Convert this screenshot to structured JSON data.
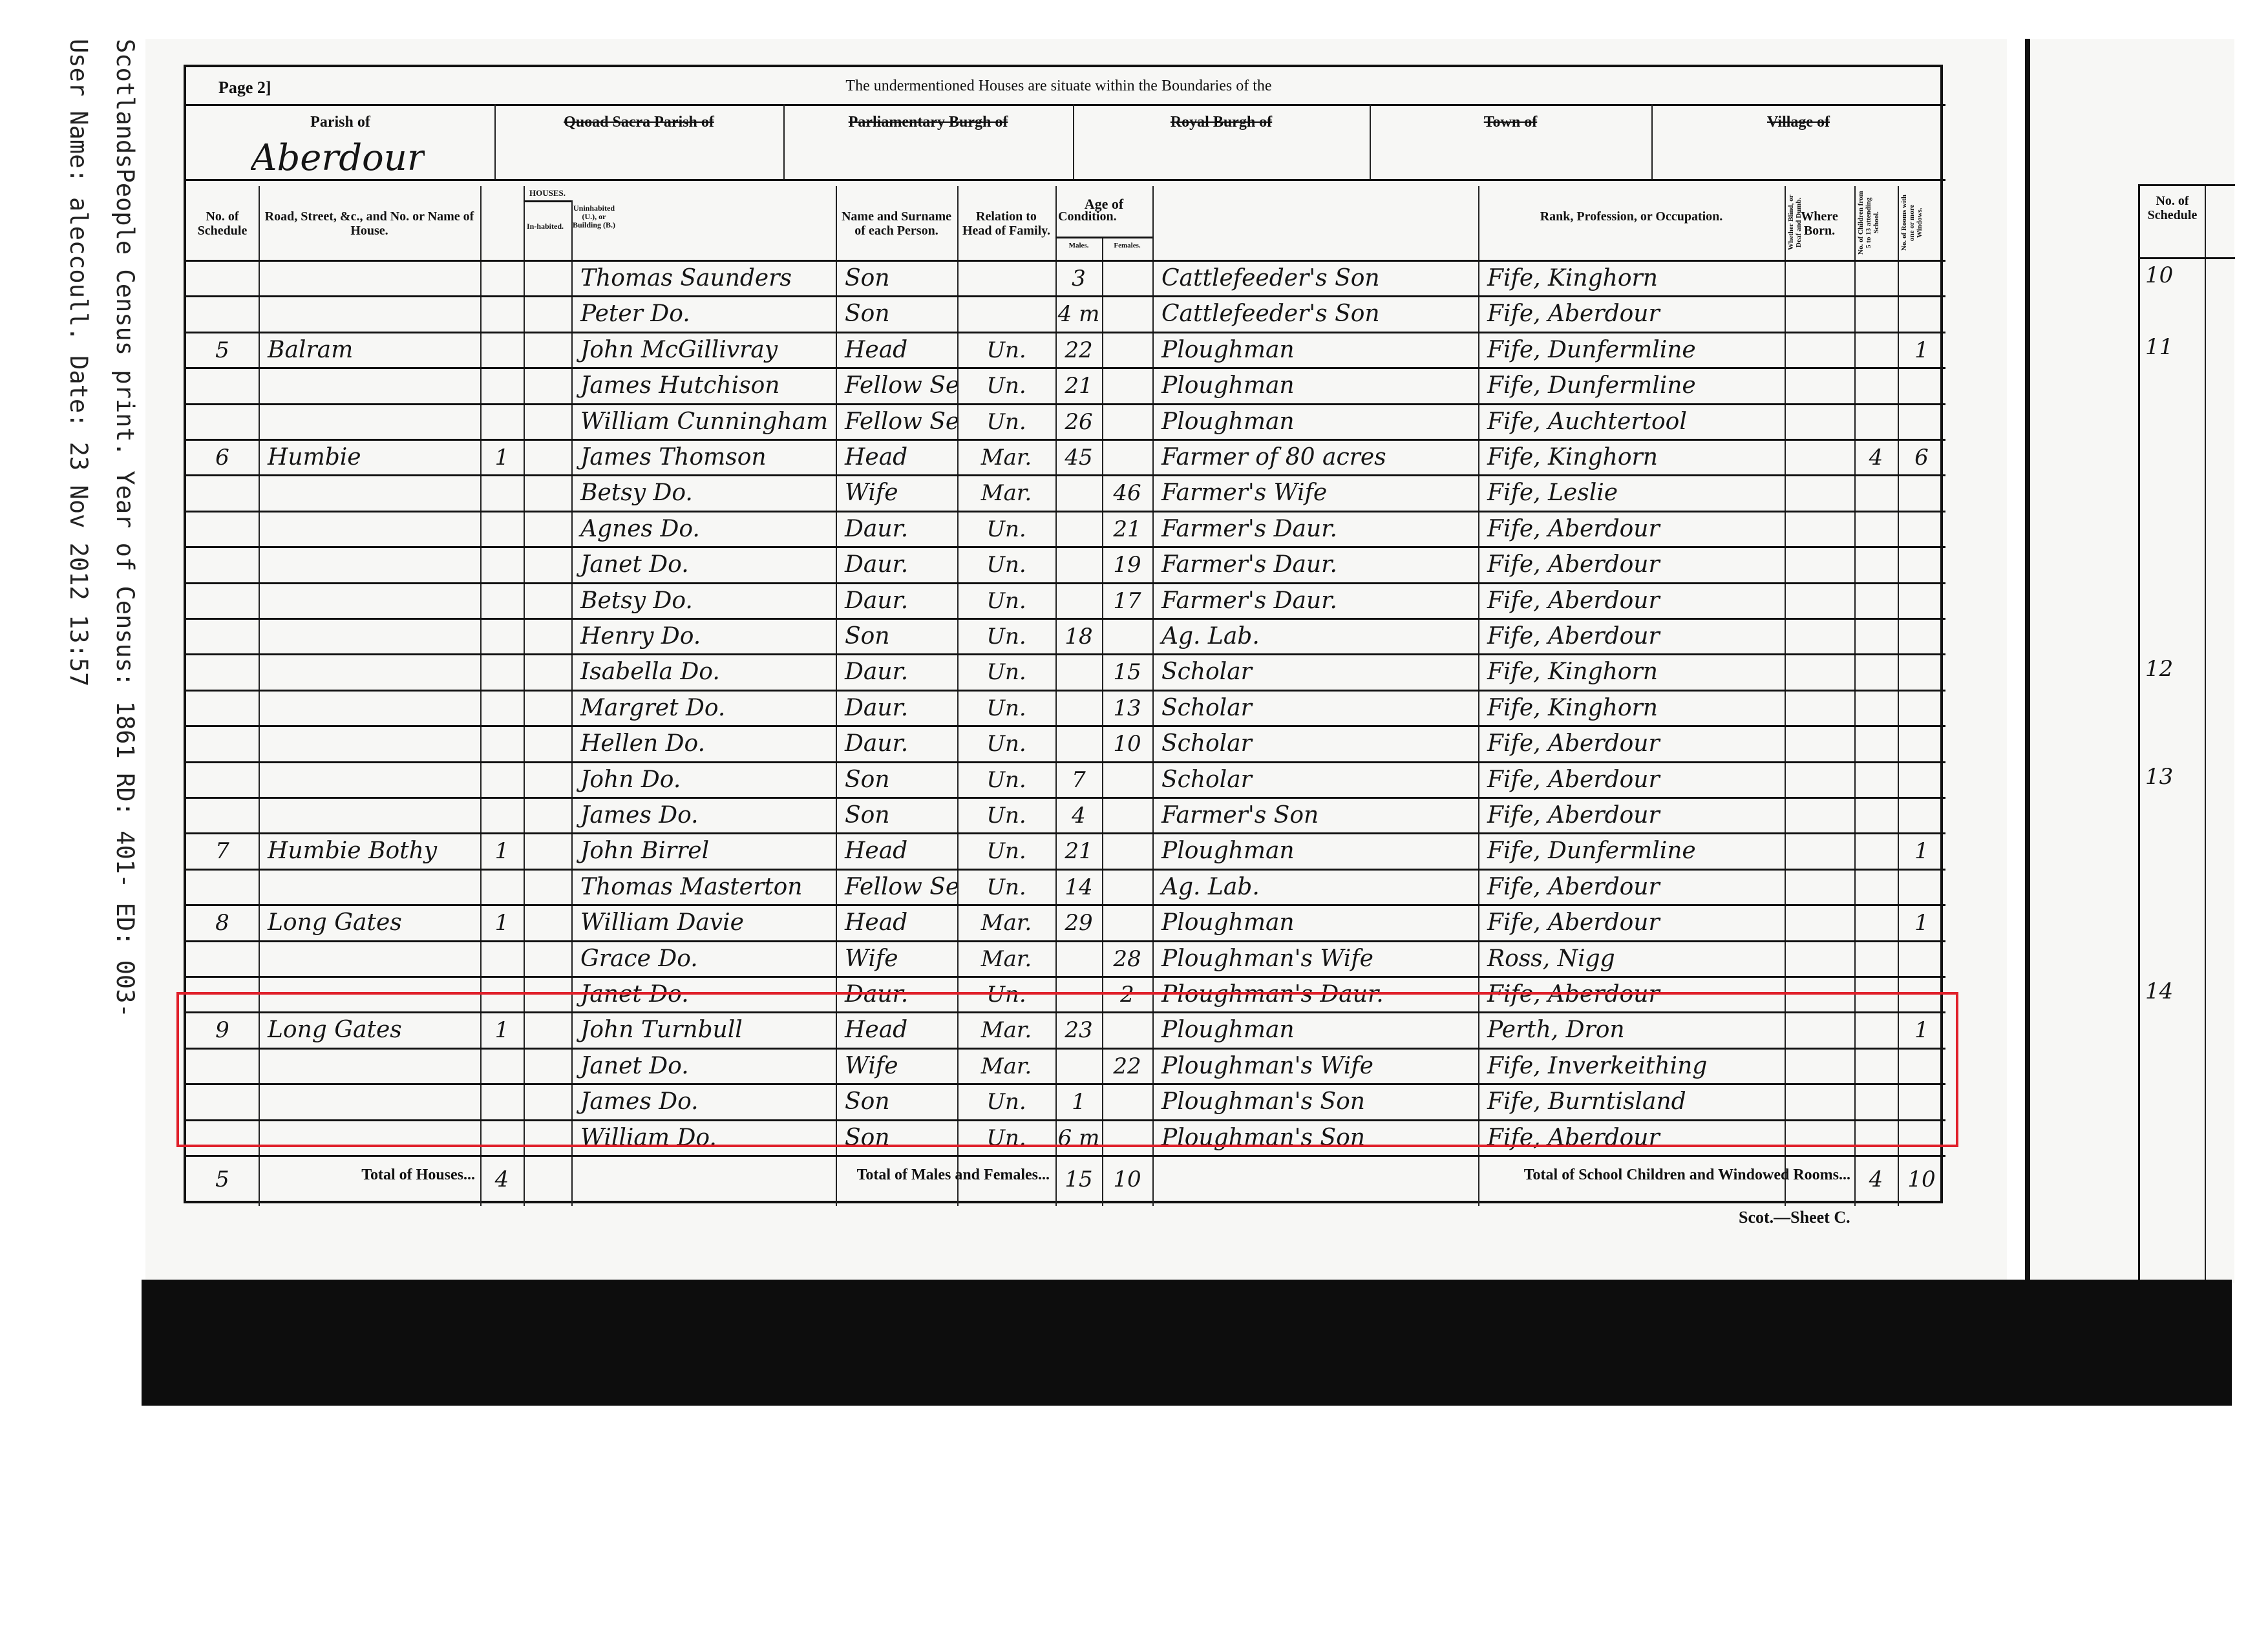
{
  "print_footer": {
    "line1": "ScotlandsPeople Census print.  Year of Census: 1861  RD: 401-  ED: 003-",
    "line2": "User Name: aleccoull.  Date: 23 Nov 2012 13:57"
  },
  "form": {
    "page_label": "Page 2]",
    "boundaries_title": "The undermentioned Houses are situate within the Boundaries of the",
    "parish_label": "Parish of",
    "parish_value": "Aberdour",
    "quoad_sacra": "Quoad Sacra Parish of",
    "parliamentary_burgh": "Parliamentary Burgh of",
    "royal_burgh": "Royal Burgh of",
    "town": "Town of",
    "village": "Village of",
    "sheet_label": "Scot.—Sheet C."
  },
  "columns": {
    "schedule": "No. of Schedule",
    "road": "Road, Street, &c., and No. or Name of House.",
    "houses": "HOUSES.",
    "inhabited": "In-habited.",
    "uninhabited": "Uninhabited (U.), or Building (B.)",
    "name": "Name and Surname of each Person.",
    "relation": "Relation to Head of Family.",
    "condition": "Condition.",
    "age": "Age of",
    "males": "Males.",
    "females": "Females.",
    "occupation": "Rank, Profession, or Occupation.",
    "born": "Where Born.",
    "blind": "Whether Blind, or Deaf and Dumb.",
    "children": "No. of Children from 5 to 13 attending School.",
    "rooms": "No. of Rooms with one or more Windows."
  },
  "rows": [
    {
      "sched": "",
      "road": "",
      "inh": "",
      "name": "Thomas Saunders",
      "rel": "Son",
      "cond": "",
      "m": "3",
      "f": "",
      "occ": "Cattlefeeder's Son",
      "born": "Fife, Kinghorn",
      "ch": "",
      "rooms": ""
    },
    {
      "sched": "",
      "road": "",
      "inh": "",
      "name": "Peter Do.",
      "rel": "Son",
      "cond": "",
      "m": "4 m",
      "f": "",
      "occ": "Cattlefeeder's Son",
      "born": "Fife, Aberdour",
      "ch": "",
      "rooms": ""
    },
    {
      "sched": "5",
      "road": "Balram",
      "inh": "",
      "name": "John McGillivray",
      "rel": "Head",
      "cond": "Un.",
      "m": "22",
      "f": "",
      "occ": "Ploughman",
      "born": "Fife, Dunfermline",
      "ch": "",
      "rooms": "1"
    },
    {
      "sched": "",
      "road": "",
      "inh": "",
      "name": "James Hutchison",
      "rel": "Fellow Serv.",
      "cond": "Un.",
      "m": "21",
      "f": "",
      "occ": "Ploughman",
      "born": "Fife, Dunfermline",
      "ch": "",
      "rooms": ""
    },
    {
      "sched": "",
      "road": "",
      "inh": "",
      "name": "William Cunningham",
      "rel": "Fellow Serv.",
      "cond": "Un.",
      "m": "26",
      "f": "",
      "occ": "Ploughman",
      "born": "Fife, Auchtertool",
      "ch": "",
      "rooms": ""
    },
    {
      "sched": "6",
      "road": "Humbie",
      "inh": "1",
      "name": "James Thomson",
      "rel": "Head",
      "cond": "Mar.",
      "m": "45",
      "f": "",
      "occ": "Farmer of 80 acres",
      "born": "Fife, Kinghorn",
      "ch": "4",
      "rooms": "6"
    },
    {
      "sched": "",
      "road": "",
      "inh": "",
      "name": "Betsy Do.",
      "rel": "Wife",
      "cond": "Mar.",
      "m": "",
      "f": "46",
      "occ": "Farmer's Wife",
      "born": "Fife, Leslie",
      "ch": "",
      "rooms": ""
    },
    {
      "sched": "",
      "road": "",
      "inh": "",
      "name": "Agnes Do.",
      "rel": "Daur.",
      "cond": "Un.",
      "m": "",
      "f": "21",
      "occ": "Farmer's Daur.",
      "born": "Fife, Aberdour",
      "ch": "",
      "rooms": ""
    },
    {
      "sched": "",
      "road": "",
      "inh": "",
      "name": "Janet Do.",
      "rel": "Daur.",
      "cond": "Un.",
      "m": "",
      "f": "19",
      "occ": "Farmer's Daur.",
      "born": "Fife, Aberdour",
      "ch": "",
      "rooms": ""
    },
    {
      "sched": "",
      "road": "",
      "inh": "",
      "name": "Betsy Do.",
      "rel": "Daur.",
      "cond": "Un.",
      "m": "",
      "f": "17",
      "occ": "Farmer's Daur.",
      "born": "Fife, Aberdour",
      "ch": "",
      "rooms": ""
    },
    {
      "sched": "",
      "road": "",
      "inh": "",
      "name": "Henry Do.",
      "rel": "Son",
      "cond": "Un.",
      "m": "18",
      "f": "",
      "occ": "Ag. Lab.",
      "born": "Fife, Aberdour",
      "ch": "",
      "rooms": ""
    },
    {
      "sched": "",
      "road": "",
      "inh": "",
      "name": "Isabella Do.",
      "rel": "Daur.",
      "cond": "Un.",
      "m": "",
      "f": "15",
      "occ": "Scholar",
      "born": "Fife, Kinghorn",
      "ch": "",
      "rooms": ""
    },
    {
      "sched": "",
      "road": "",
      "inh": "",
      "name": "Margret Do.",
      "rel": "Daur.",
      "cond": "Un.",
      "m": "",
      "f": "13",
      "occ": "Scholar",
      "born": "Fife, Kinghorn",
      "ch": "",
      "rooms": ""
    },
    {
      "sched": "",
      "road": "",
      "inh": "",
      "name": "Hellen Do.",
      "rel": "Daur.",
      "cond": "Un.",
      "m": "",
      "f": "10",
      "occ": "Scholar",
      "born": "Fife, Aberdour",
      "ch": "",
      "rooms": ""
    },
    {
      "sched": "",
      "road": "",
      "inh": "",
      "name": "John Do.",
      "rel": "Son",
      "cond": "Un.",
      "m": "7",
      "f": "",
      "occ": "Scholar",
      "born": "Fife, Aberdour",
      "ch": "",
      "rooms": ""
    },
    {
      "sched": "",
      "road": "",
      "inh": "",
      "name": "James Do.",
      "rel": "Son",
      "cond": "Un.",
      "m": "4",
      "f": "",
      "occ": "Farmer's Son",
      "born": "Fife, Aberdour",
      "ch": "",
      "rooms": ""
    },
    {
      "sched": "7",
      "road": "Humbie Bothy",
      "inh": "1",
      "name": "John Birrel",
      "rel": "Head",
      "cond": "Un.",
      "m": "21",
      "f": "",
      "occ": "Ploughman",
      "born": "Fife, Dunfermline",
      "ch": "",
      "rooms": "1"
    },
    {
      "sched": "",
      "road": "",
      "inh": "",
      "name": "Thomas Masterton",
      "rel": "Fellow Serv.",
      "cond": "Un.",
      "m": "14",
      "f": "",
      "occ": "Ag. Lab.",
      "born": "Fife, Aberdour",
      "ch": "",
      "rooms": ""
    },
    {
      "sched": "8",
      "road": "Long Gates",
      "inh": "1",
      "name": "William Davie",
      "rel": "Head",
      "cond": "Mar.",
      "m": "29",
      "f": "",
      "occ": "Ploughman",
      "born": "Fife, Aberdour",
      "ch": "",
      "rooms": "1"
    },
    {
      "sched": "",
      "road": "",
      "inh": "",
      "name": "Grace Do.",
      "rel": "Wife",
      "cond": "Mar.",
      "m": "",
      "f": "28",
      "occ": "Ploughman's Wife",
      "born": "Ross, Nigg",
      "ch": "",
      "rooms": ""
    },
    {
      "sched": "",
      "road": "",
      "inh": "",
      "name": "Janet Do.",
      "rel": "Daur.",
      "cond": "Un.",
      "m": "",
      "f": "2",
      "occ": "Ploughman's Daur.",
      "born": "Fife, Aberdour",
      "ch": "",
      "rooms": ""
    },
    {
      "sched": "9",
      "road": "Long Gates",
      "inh": "1",
      "name": "John Turnbull",
      "rel": "Head",
      "cond": "Mar.",
      "m": "23",
      "f": "",
      "occ": "Ploughman",
      "born": "Perth, Dron",
      "ch": "",
      "rooms": "1"
    },
    {
      "sched": "",
      "road": "",
      "inh": "",
      "name": "Janet Do.",
      "rel": "Wife",
      "cond": "Mar.",
      "m": "",
      "f": "22",
      "occ": "Ploughman's Wife",
      "born": "Fife, Inverkeithing",
      "ch": "",
      "rooms": ""
    },
    {
      "sched": "",
      "road": "",
      "inh": "",
      "name": "James Do.",
      "rel": "Son",
      "cond": "Un.",
      "m": "1",
      "f": "",
      "occ": "Ploughman's Son",
      "born": "Fife, Burntisland",
      "ch": "",
      "rooms": ""
    },
    {
      "sched": "",
      "road": "",
      "inh": "",
      "name": "William Do.",
      "rel": "Son",
      "cond": "Un.",
      "m": "6 m",
      "f": "",
      "occ": "Ploughman's Son",
      "born": "Fife, Aberdour",
      "ch": "",
      "rooms": ""
    }
  ],
  "totals": {
    "schedules": "5",
    "houses_label": "Total of Houses...",
    "houses": "4",
    "persons_label": "Total of Males and Females...",
    "males": "15",
    "females": "10",
    "school_label": "Total of School Children and Windowed Rooms...",
    "children": "4",
    "rooms": "10"
  },
  "highlight": {
    "color": "#e0202a",
    "schedule": "9"
  },
  "adjacent_page": {
    "schedule_header": "No. of Schedule",
    "schedules": [
      "10",
      "11",
      "12",
      "13",
      "14"
    ]
  }
}
